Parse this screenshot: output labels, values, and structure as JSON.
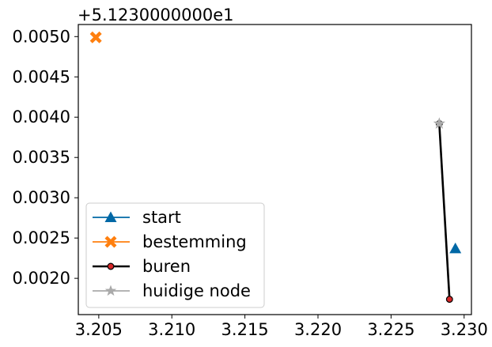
{
  "chart_data": {
    "type": "line",
    "title": "",
    "xlabel": "",
    "ylabel": "",
    "y_offset_label": "+5.1230000000e1",
    "xlim": [
      3.2036,
      3.2305
    ],
    "ylim": [
      0.00155,
      0.00515
    ],
    "x_ticks": [
      3.205,
      3.21,
      3.215,
      3.22,
      3.225,
      3.23
    ],
    "x_tick_labels": [
      "3.205",
      "3.210",
      "3.215",
      "3.220",
      "3.225",
      "3.230"
    ],
    "y_ticks": [
      0.002,
      0.0025,
      0.003,
      0.0035,
      0.004,
      0.0045,
      0.005
    ],
    "y_tick_labels": [
      "0.0020",
      "0.0025",
      "0.0030",
      "0.0035",
      "0.0040",
      "0.0045",
      "0.0050"
    ],
    "grid": false,
    "legend_position": "lower-left",
    "series": [
      {
        "name": "start",
        "marker": "triangle",
        "color": "#0068a6",
        "line": false,
        "points": [
          [
            3.2294,
            0.00237
          ]
        ]
      },
      {
        "name": "bestemming",
        "marker": "x-filled",
        "color": "#ff7f0e",
        "line": false,
        "points": [
          [
            3.2048,
            0.00499
          ]
        ]
      },
      {
        "name": "buren",
        "marker": "circle",
        "color": "#000000",
        "marker_fill": "#d62728",
        "line": true,
        "points": [
          [
            3.2283,
            0.00392
          ],
          [
            3.229,
            0.00174
          ]
        ]
      },
      {
        "name": "huidige node",
        "marker": "star",
        "color": "#aaaaaa",
        "line": false,
        "points": [
          [
            3.2283,
            0.00392
          ]
        ]
      }
    ]
  }
}
